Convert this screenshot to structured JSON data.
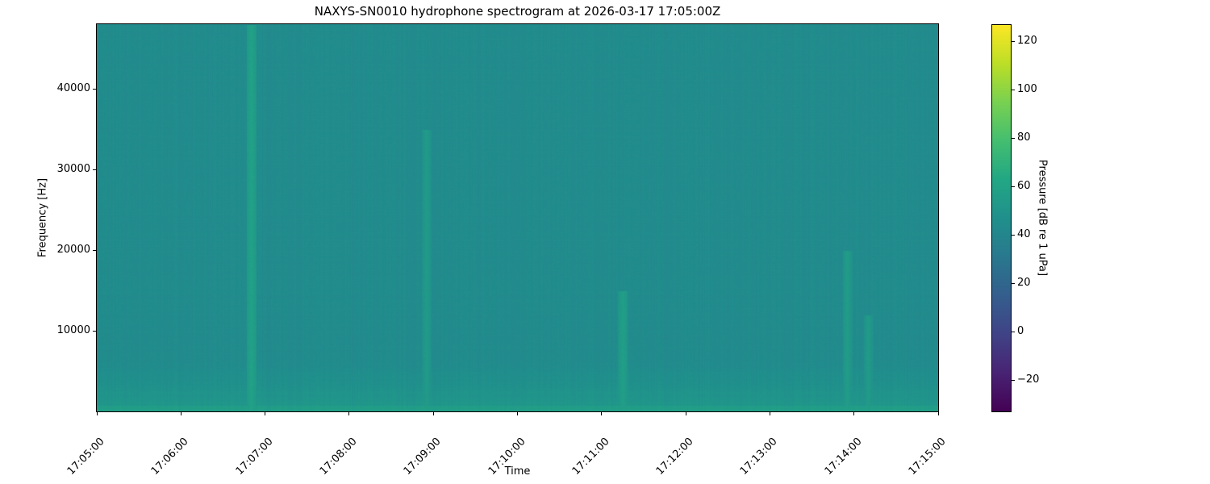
{
  "chart_data": {
    "type": "heatmap",
    "title": "NAXYS-SN0010 hydrophone spectrogram at 2026-03-17 17:05:00Z",
    "xlabel": "Time",
    "ylabel": "Frequency [Hz]",
    "colorbar_label": "Pressure [dB re 1 uPa]",
    "colormap": "viridis",
    "x_ticks": [
      "17:05:00",
      "17:06:00",
      "17:07:00",
      "17:08:00",
      "17:09:00",
      "17:10:00",
      "17:11:00",
      "17:12:00",
      "17:13:00",
      "17:14:00",
      "17:15:00"
    ],
    "xlim": [
      "17:05:00",
      "17:15:00"
    ],
    "y_ticks": [
      10000,
      20000,
      30000,
      40000
    ],
    "ylim": [
      0,
      48000
    ],
    "colorbar_ticks": [
      -20,
      0,
      20,
      40,
      60,
      80,
      100,
      120
    ],
    "clim": [
      -33,
      127
    ],
    "background_level_db": 44,
    "low_frequency_band": {
      "max_hz": 6000,
      "level_db": 56
    },
    "events": [
      {
        "time": "17:06:50",
        "max_hz": 48000,
        "level_db": 60
      },
      {
        "time": "17:08:55",
        "max_hz": 35000,
        "level_db": 55
      },
      {
        "time": "17:11:15",
        "max_hz": 15000,
        "level_db": 58
      },
      {
        "time": "17:13:55",
        "max_hz": 20000,
        "level_db": 56
      },
      {
        "time": "17:14:10",
        "max_hz": 12000,
        "level_db": 55
      }
    ]
  }
}
